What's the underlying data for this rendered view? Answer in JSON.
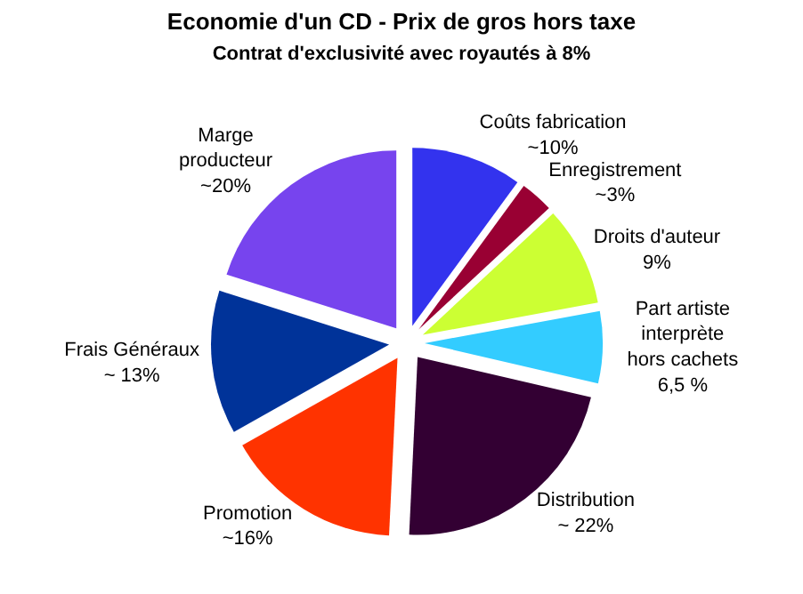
{
  "chart_data": {
    "type": "pie",
    "title": "Economie d'un CD - Prix de gros hors taxe",
    "subtitle": "Contrat d'exclusivité avec royautés à 8%",
    "categories": [
      "Coûts fabrication",
      "Enregistrement",
      "Droits d'auteur",
      "Part artiste\ninterprète\nhors cachets",
      "Distribution",
      "Promotion",
      "Frais Généraux",
      "Marge\nproducteur"
    ],
    "values": [
      10,
      3,
      9,
      6.5,
      22,
      16,
      13,
      20
    ],
    "value_labels": [
      "~10%",
      "~3%",
      "9%",
      "6,5 %",
      "~ 22%",
      "~16%",
      "~ 13%",
      "~20%"
    ],
    "colors": [
      "#3333ee",
      "#990033",
      "#ccff33",
      "#33ccff",
      "#330033",
      "#ff3300",
      "#003399",
      "#7744ee"
    ],
    "legend": false
  }
}
